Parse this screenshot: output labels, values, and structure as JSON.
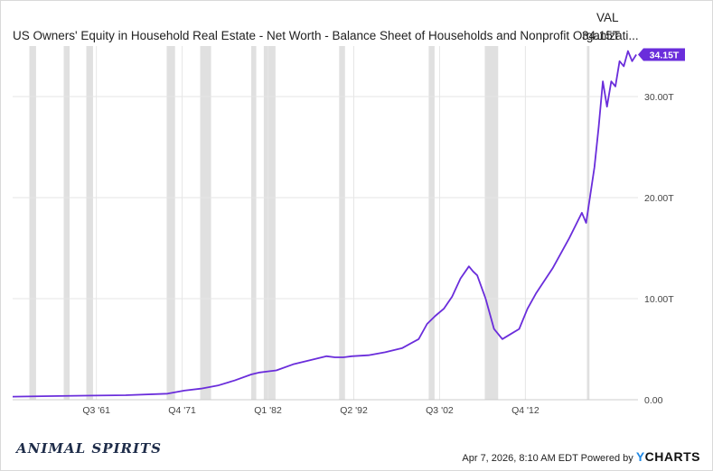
{
  "header": {
    "title": "US Owners' Equity in Household Real Estate - Net Worth - Balance Sheet of Households and Nonprofit Organizati...",
    "val_label": "VAL",
    "val_value": "34.15T"
  },
  "footer": {
    "logo_text": "ANIMAL SPIRITS",
    "timestamp": "Apr 7, 2026, 8:10 AM EDT Powered by",
    "brand_prefix": "Y",
    "brand_rest": "CHARTS"
  },
  "colors": {
    "line": "#6a2ddb",
    "recession": "#e0e0e0",
    "grid": "#e6e6e6",
    "axis_text": "#444444"
  },
  "chart_data": {
    "type": "line",
    "title": "US Owners' Equity in Household Real Estate - Net Worth - Balance Sheet of Households and Nonprofit Organizati...",
    "xlabel": "",
    "ylabel": "",
    "xlim": [
      1951.5,
      2026.2
    ],
    "ylim": [
      0,
      35
    ],
    "y_ticks": [
      {
        "value": 0,
        "label": "0.00"
      },
      {
        "value": 10,
        "label": "10.00T"
      },
      {
        "value": 20,
        "label": "20.00T"
      },
      {
        "value": 30,
        "label": "30.00T"
      }
    ],
    "x_ticks": [
      {
        "value": 1961.5,
        "label": "Q3 '61"
      },
      {
        "value": 1971.75,
        "label": "Q4 '71"
      },
      {
        "value": 1982.0,
        "label": "Q1 '82"
      },
      {
        "value": 1992.25,
        "label": "Q2 '92"
      },
      {
        "value": 2002.5,
        "label": "Q3 '02"
      },
      {
        "value": 2012.75,
        "label": "Q4 '12"
      }
    ],
    "last_value_label": "34.15T",
    "grid": true,
    "recessions": [
      [
        1953.5,
        1954.3
      ],
      [
        1957.6,
        1958.3
      ],
      [
        1960.3,
        1961.1
      ],
      [
        1969.9,
        1970.9
      ],
      [
        1973.9,
        1975.2
      ],
      [
        1980.0,
        1980.6
      ],
      [
        1981.5,
        1982.9
      ],
      [
        1990.5,
        1991.2
      ],
      [
        2001.2,
        2001.9
      ],
      [
        2007.9,
        2009.5
      ],
      [
        2020.1,
        2020.4
      ]
    ],
    "series": [
      {
        "x": [
          1951.5,
          1955,
          1960,
          1965,
          1970,
          1972,
          1974,
          1976,
          1978,
          1980,
          1981,
          1982,
          1983,
          1985,
          1987,
          1989,
          1990,
          1991,
          1992,
          1994,
          1996,
          1998,
          2000,
          2001,
          2002,
          2003,
          2004,
          2005,
          2006,
          2006.5,
          2007,
          2008,
          2009,
          2010,
          2011,
          2012,
          2013,
          2014,
          2016,
          2018,
          2019.5,
          2020,
          2021,
          2021.5,
          2022,
          2022.5,
          2023,
          2023.5,
          2024,
          2024.5,
          2025,
          2025.5,
          2026.0
        ],
        "values": [
          0.3,
          0.35,
          0.4,
          0.45,
          0.6,
          0.9,
          1.1,
          1.4,
          1.9,
          2.5,
          2.7,
          2.8,
          2.9,
          3.5,
          3.9,
          4.3,
          4.2,
          4.2,
          4.3,
          4.4,
          4.7,
          5.1,
          6.0,
          7.5,
          8.3,
          9.0,
          10.2,
          12.0,
          13.2,
          12.7,
          12.3,
          10.0,
          7.0,
          6.0,
          6.5,
          7.0,
          9.0,
          10.5,
          13.0,
          16.0,
          18.5,
          17.5,
          23.0,
          27.0,
          31.5,
          29.0,
          31.5,
          31.0,
          33.5,
          33.0,
          34.5,
          33.5,
          34.15
        ]
      }
    ]
  }
}
